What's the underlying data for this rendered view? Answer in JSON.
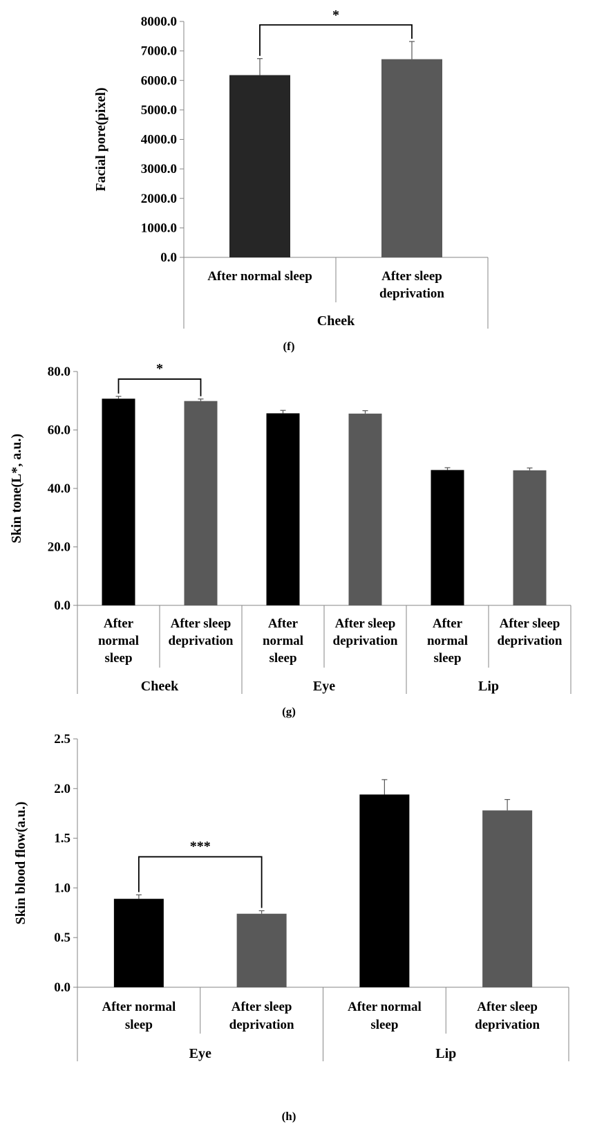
{
  "chart_data": [
    {
      "type": "bar",
      "caption": "(f)",
      "ylabel": "Facial pore(pixel)",
      "ylim": [
        0,
        8000
      ],
      "yticks": [
        "0.0",
        "1000.0",
        "2000.0",
        "3000.0",
        "4000.0",
        "5000.0",
        "6000.0",
        "7000.0",
        "8000.0"
      ],
      "groups": [
        {
          "label": "Cheek",
          "bars": [
            {
              "label": [
                "After normal sleep"
              ],
              "value": 6180,
              "error": 560,
              "color": "#262626"
            },
            {
              "label": [
                "After sleep",
                "deprivation"
              ],
              "value": 6720,
              "error": 600,
              "color": "#595959"
            }
          ]
        }
      ],
      "significance": [
        {
          "text": "*",
          "group": 0,
          "from": 0,
          "to": 1
        }
      ]
    },
    {
      "type": "bar",
      "caption": "(g)",
      "ylabel": "Skin tone(L*, a.u.)",
      "ylim": [
        0,
        80
      ],
      "yticks": [
        "0.0",
        "20.0",
        "40.0",
        "60.0",
        "80.0"
      ],
      "groups": [
        {
          "label": "Cheek",
          "bars": [
            {
              "label": [
                "After",
                "normal",
                "sleep"
              ],
              "value": 70.7,
              "error": 0.8,
              "color": "#000000"
            },
            {
              "label": [
                "After sleep",
                "deprivation"
              ],
              "value": 69.9,
              "error": 0.7,
              "color": "#595959"
            }
          ]
        },
        {
          "label": "Eye",
          "bars": [
            {
              "label": [
                "After",
                "normal",
                "sleep"
              ],
              "value": 65.7,
              "error": 1.0,
              "color": "#000000"
            },
            {
              "label": [
                "After sleep",
                "deprivation"
              ],
              "value": 65.6,
              "error": 1.0,
              "color": "#595959"
            }
          ]
        },
        {
          "label": "Lip",
          "bars": [
            {
              "label": [
                "After",
                "normal",
                "sleep"
              ],
              "value": 46.3,
              "error": 0.8,
              "color": "#000000"
            },
            {
              "label": [
                "After sleep",
                "deprivation"
              ],
              "value": 46.2,
              "error": 0.8,
              "color": "#595959"
            }
          ]
        }
      ],
      "significance": [
        {
          "text": "*",
          "group": 0,
          "from": 0,
          "to": 1
        }
      ]
    },
    {
      "type": "bar",
      "caption": "(h)",
      "ylabel": "Skin blood flow(a.u.)",
      "ylim": [
        0,
        2.5
      ],
      "yticks": [
        "0.0",
        "0.5",
        "1.0",
        "1.5",
        "2.0",
        "2.5"
      ],
      "groups": [
        {
          "label": "Eye",
          "bars": [
            {
              "label": [
                "After normal",
                "sleep"
              ],
              "value": 0.89,
              "error": 0.04,
              "color": "#000000"
            },
            {
              "label": [
                "After sleep",
                "deprivation"
              ],
              "value": 0.74,
              "error": 0.03,
              "color": "#595959"
            }
          ]
        },
        {
          "label": "Lip",
          "bars": [
            {
              "label": [
                "After normal",
                "sleep"
              ],
              "value": 1.94,
              "error": 0.15,
              "color": "#000000"
            },
            {
              "label": [
                "After sleep",
                "deprivation"
              ],
              "value": 1.78,
              "error": 0.11,
              "color": "#595959"
            }
          ]
        }
      ],
      "significance": [
        {
          "text": "***",
          "group": 0,
          "from": 0,
          "to": 1
        }
      ]
    }
  ]
}
